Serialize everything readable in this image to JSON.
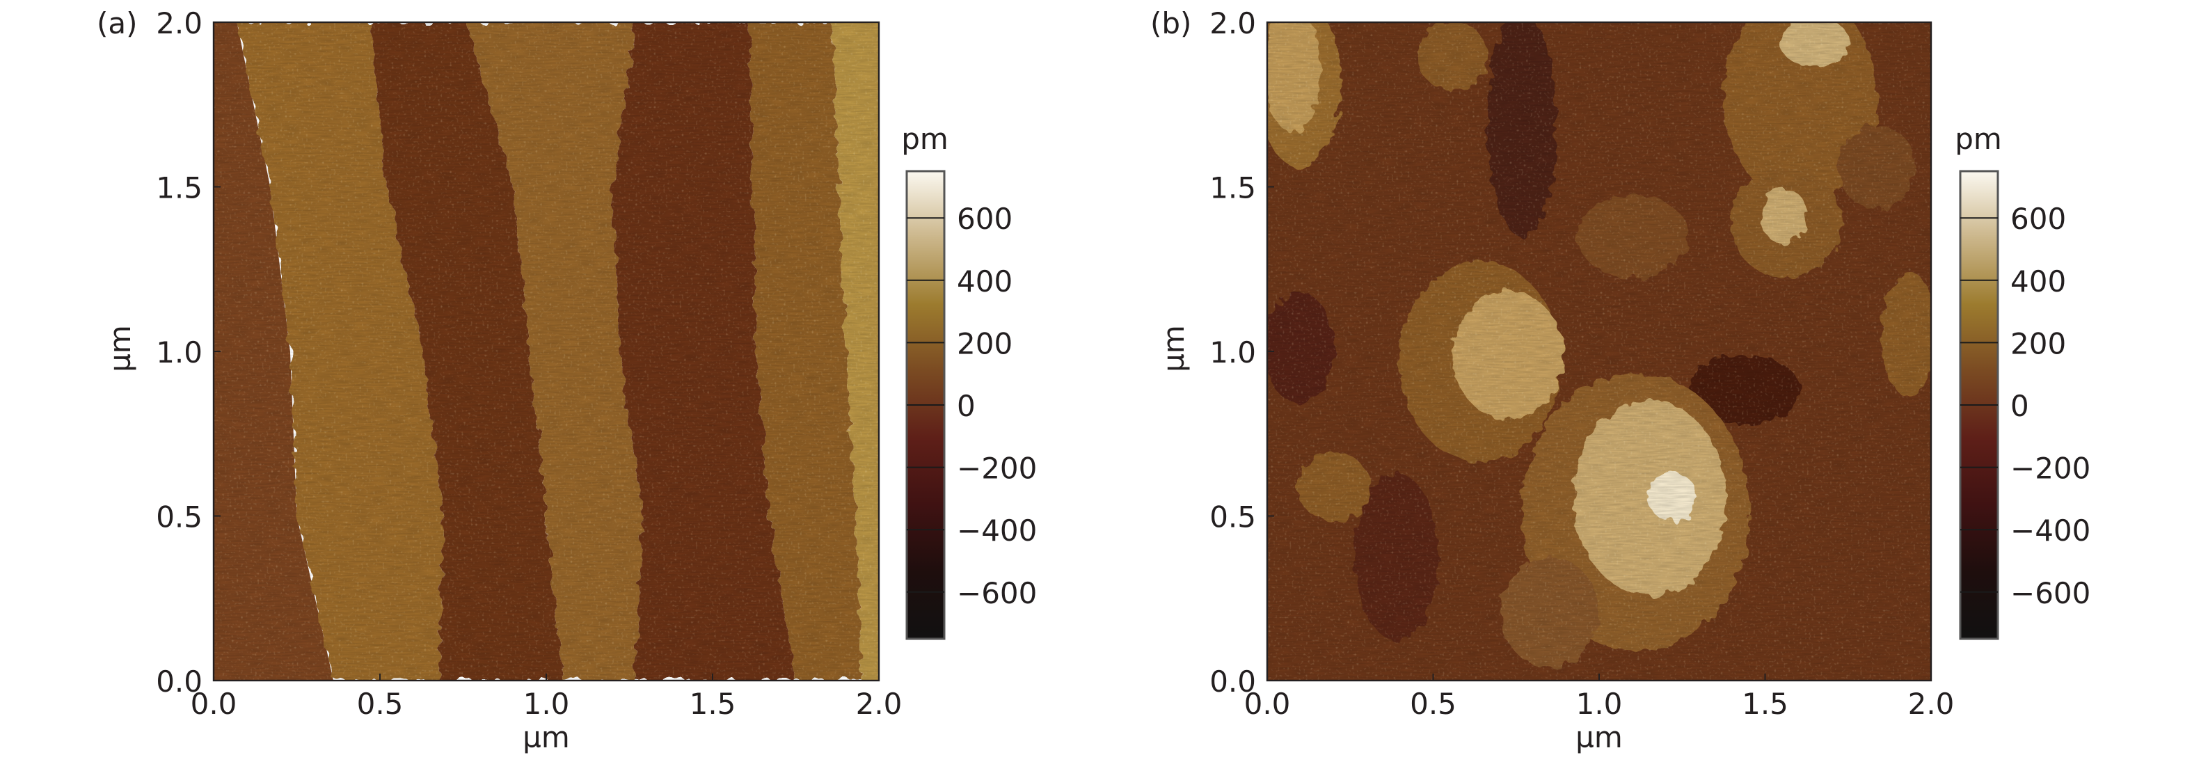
{
  "chart_data": [
    {
      "type": "heatmap",
      "panel_label": "(a)",
      "xlabel": "µm",
      "ylabel": "µm",
      "xlim": [
        0,
        2
      ],
      "ylim": [
        0,
        2
      ],
      "x_ticks": [
        "0.0",
        "0.5",
        "1.0",
        "1.5",
        "2.0"
      ],
      "y_ticks": [
        "0.0",
        "0.5",
        "1.0",
        "1.5",
        "2.0"
      ],
      "colorbar": {
        "unit": "pm",
        "range": [
          -750,
          750
        ],
        "ticks": [
          "600",
          "400",
          "200",
          "0",
          "−200",
          "−400",
          "−600"
        ]
      }
    },
    {
      "type": "heatmap",
      "panel_label": "(b)",
      "xlabel": "µm",
      "ylabel": "µm",
      "xlim": [
        0,
        2
      ],
      "ylim": [
        0,
        2
      ],
      "x_ticks": [
        "0.0",
        "0.5",
        "1.0",
        "1.5",
        "2.0"
      ],
      "y_ticks": [
        "0.0",
        "0.5",
        "1.0",
        "1.5",
        "2.0"
      ],
      "colorbar": {
        "unit": "pm",
        "range": [
          -750,
          750
        ],
        "ticks": [
          "600",
          "400",
          "200",
          "0",
          "−200",
          "−400",
          "−600"
        ]
      }
    }
  ],
  "colormap": [
    "#111111",
    "#1e0e0d",
    "#3f1212",
    "#5e1f18",
    "#7a4a22",
    "#9c7b2e",
    "#cbb68a",
    "#fbf8f0"
  ]
}
